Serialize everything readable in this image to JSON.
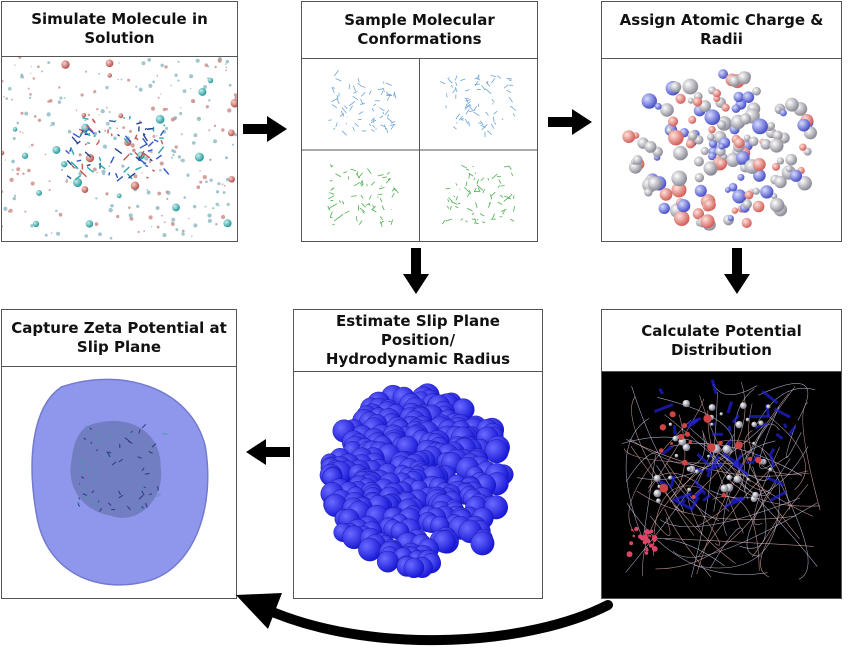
{
  "diagram": {
    "steps": [
      {
        "id": "simulate",
        "title": "Simulate Molecule in\nSolution",
        "image": "solvated-molecule-render"
      },
      {
        "id": "sample",
        "title": "Sample Molecular\nConformations",
        "image": "conformation-grid-render"
      },
      {
        "id": "assign",
        "title": "Assign Atomic Charge &\nRadii",
        "image": "charged-atoms-render"
      },
      {
        "id": "calculate",
        "title": "Calculate Potential\nDistribution",
        "image": "field-lines-render"
      },
      {
        "id": "estimate",
        "title": "Estimate Slip Plane Position/\nHydrodynamic Radius",
        "image": "blue-spheres-render"
      },
      {
        "id": "capture",
        "title": "Capture Zeta Potential at\nSlip Plane",
        "image": "translucent-surface-render"
      }
    ],
    "flow": [
      {
        "from": "simulate",
        "to": "sample",
        "icon": "arrow-right-icon"
      },
      {
        "from": "sample",
        "to": "assign",
        "icon": "arrow-right-icon"
      },
      {
        "from": "sample",
        "to": "estimate",
        "icon": "arrow-down-icon"
      },
      {
        "from": "assign",
        "to": "calculate",
        "icon": "arrow-down-icon"
      },
      {
        "from": "estimate",
        "to": "capture",
        "icon": "arrow-left-icon"
      },
      {
        "from": "calculate",
        "to": "capture",
        "icon": "curved-arrow-icon"
      }
    ],
    "colors": {
      "molecule_blue": "#1a1ad8",
      "surface_blue": "#7b86e8",
      "conformation_blue": "#6aa3d8",
      "conformation_green": "#4caf50",
      "charge_red": "#d2605a",
      "field_background": "#000000",
      "arrow": "#000000"
    }
  }
}
